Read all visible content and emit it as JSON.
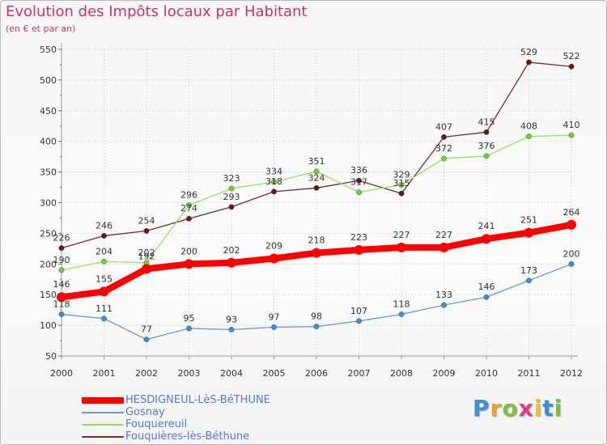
{
  "header": {
    "title": "Evolution des Impôts locaux par Habitant",
    "subtitle": "(en € et par an)"
  },
  "logo": {
    "letters": [
      "P",
      "r",
      "o",
      "x",
      "i",
      "t",
      "i"
    ],
    "colors": [
      "#3b8fd9",
      "#f0a030",
      "#7cc242",
      "#e03a8a",
      "#f0c030",
      "#3b8fd9",
      "#7cc242"
    ]
  },
  "chart_data": {
    "type": "line",
    "title": "Evolution des Impôts locaux par Habitant",
    "subtitle": "(en € et par an)",
    "categories": [
      "2000",
      "2001",
      "2002",
      "2003",
      "2004",
      "2005",
      "2006",
      "2007",
      "2008",
      "2009",
      "2010",
      "2011",
      "2012"
    ],
    "ylim": [
      50,
      550
    ],
    "yticks": [
      50,
      100,
      150,
      200,
      250,
      300,
      350,
      400,
      450,
      500,
      550
    ],
    "grid": true,
    "legend_position": "bottom-left",
    "series": [
      {
        "name": "HESDIGNEUL-LèS-BéTHUNE",
        "color": "#ff0000",
        "marker": "#ff0000",
        "values": [
          146,
          155,
          192,
          200,
          202,
          209,
          218,
          223,
          227,
          227,
          241,
          251,
          264
        ]
      },
      {
        "name": "Gosnay",
        "color": "#6699cc",
        "marker": "#3d8fd9",
        "values": [
          118,
          111,
          77,
          95,
          93,
          97,
          98,
          107,
          118,
          133,
          146,
          173,
          200
        ]
      },
      {
        "name": "Fouquereuil",
        "color": "#99dd66",
        "marker": "#77cc33",
        "values": [
          190,
          204,
          202,
          296,
          323,
          334,
          351,
          317,
          329,
          372,
          376,
          408,
          410
        ]
      },
      {
        "name": "Fouquières-lès-Béthune",
        "color": "#7a2b2b",
        "marker": "#661a1a",
        "values": [
          226,
          246,
          254,
          274,
          293,
          318,
          324,
          336,
          315,
          407,
          415,
          529,
          522
        ]
      }
    ]
  }
}
